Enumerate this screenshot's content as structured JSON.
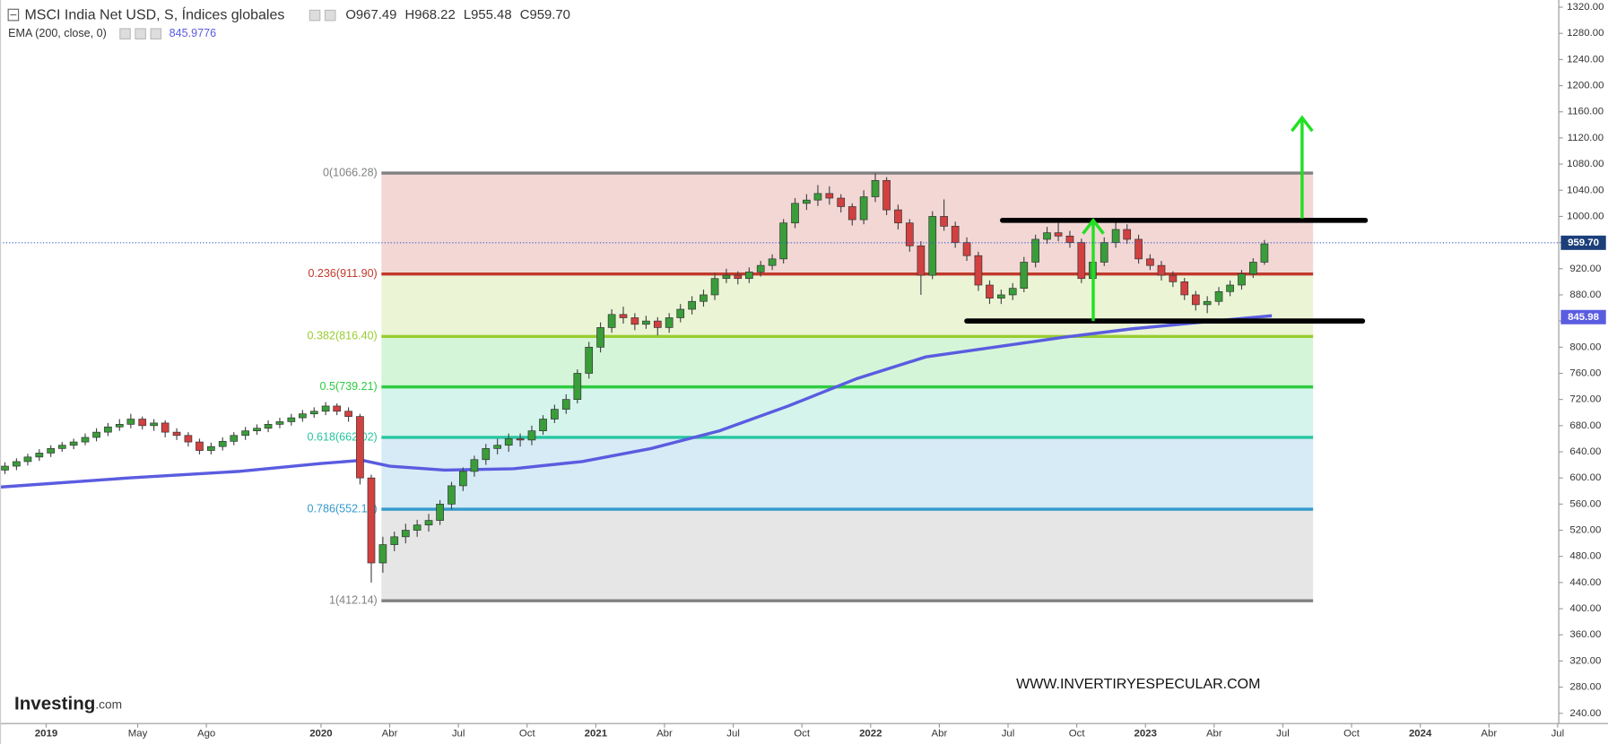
{
  "chart_data": {
    "type": "candlestick",
    "title": "MSCI India Net USD, S, Índices globales",
    "readout": [
      {
        "key": "O",
        "text": "967.49"
      },
      {
        "key": "H",
        "text": "968.22"
      },
      {
        "key": "L",
        "text": "955.48"
      },
      {
        "key": "C",
        "text": "959.70"
      }
    ],
    "up_color": "#3a9d3a",
    "down_color": "#d24040",
    "xlim": [
      2018.832,
      2024.504
    ],
    "ylim": [
      224.4,
      1331
    ],
    "xticks": [
      2019,
      {
        "value": 2019.333,
        "label": "May"
      },
      {
        "value": 2019.583,
        "label": "Ago"
      },
      2020,
      {
        "value": 2020.25,
        "label": "Abr"
      },
      {
        "value": 2020.5,
        "label": "Jul"
      },
      {
        "value": 2020.75,
        "label": "Oct"
      },
      2021,
      {
        "value": 2021.25,
        "label": "Abr"
      },
      {
        "value": 2021.5,
        "label": "Jul"
      },
      {
        "value": 2021.75,
        "label": "Oct"
      },
      2022,
      {
        "value": 2022.25,
        "label": "Abr"
      },
      {
        "value": 2022.5,
        "label": "Jul"
      },
      {
        "value": 2022.75,
        "label": "Oct"
      },
      2023,
      {
        "value": 2023.25,
        "label": "Abr"
      },
      {
        "value": 2023.5,
        "label": "Jul"
      },
      {
        "value": 2023.75,
        "label": "Oct"
      },
      2024,
      {
        "value": 2024.25,
        "label": "Abr"
      },
      {
        "value": 2024.5,
        "label": "Jul"
      }
    ],
    "yticks": [
      {
        "value": 240,
        "label": "240.00"
      },
      {
        "value": 280,
        "label": "280.00"
      },
      {
        "value": 320,
        "label": "320.00"
      },
      {
        "value": 360,
        "label": "360.00"
      },
      {
        "value": 400,
        "label": "400.00"
      },
      {
        "value": 440,
        "label": "440.00"
      },
      {
        "value": 480,
        "label": "480.00"
      },
      {
        "value": 520,
        "label": "520.00"
      },
      {
        "value": 560,
        "label": "560.00"
      },
      {
        "value": 600,
        "label": "600.00"
      },
      {
        "value": 640,
        "label": "640.00"
      },
      {
        "value": 680,
        "label": "680.00"
      },
      {
        "value": 720,
        "label": "720.00"
      },
      {
        "value": 760,
        "label": "760.00"
      },
      {
        "value": 800,
        "label": "800.00"
      },
      {
        "value": 840,
        "label": "840.00"
      },
      {
        "value": 880,
        "label": "880.00"
      },
      {
        "value": 920,
        "label": "920.00"
      },
      {
        "value": 960,
        "label": "960.00"
      },
      {
        "value": 1000,
        "label": "1000.00"
      },
      {
        "value": 1040,
        "label": "1040.00"
      },
      {
        "value": 1080,
        "label": "1080.00"
      },
      {
        "value": 1120,
        "label": "1120.00"
      },
      {
        "value": 1160,
        "label": "1160.00"
      },
      {
        "value": 1200,
        "label": "1200.00"
      },
      {
        "value": 1240,
        "label": "1240.00"
      },
      {
        "value": 1280,
        "label": "1280.00"
      },
      {
        "value": 1320,
        "label": "1320.00"
      }
    ],
    "x": [
      2018.85,
      2018.892,
      2018.933,
      2018.975,
      2019.017,
      2019.058,
      2019.1,
      2019.142,
      2019.183,
      2019.225,
      2019.267,
      2019.308,
      2019.35,
      2019.392,
      2019.433,
      2019.475,
      2019.517,
      2019.558,
      2019.6,
      2019.642,
      2019.683,
      2019.725,
      2019.767,
      2019.808,
      2019.85,
      2019.892,
      2019.933,
      2019.975,
      2020.017,
      2020.058,
      2020.1,
      2020.142,
      2020.183,
      2020.225,
      2020.267,
      2020.308,
      2020.35,
      2020.392,
      2020.433,
      2020.475,
      2020.517,
      2020.558,
      2020.6,
      2020.642,
      2020.683,
      2020.725,
      2020.767,
      2020.808,
      2020.85,
      2020.892,
      2020.933,
      2020.975,
      2021.017,
      2021.058,
      2021.1,
      2021.142,
      2021.183,
      2021.225,
      2021.267,
      2021.308,
      2021.35,
      2021.392,
      2021.433,
      2021.475,
      2021.517,
      2021.558,
      2021.6,
      2021.642,
      2021.683,
      2021.725,
      2021.767,
      2021.808,
      2021.85,
      2021.892,
      2021.933,
      2021.975,
      2022.017,
      2022.058,
      2022.1,
      2022.142,
      2022.183,
      2022.225,
      2022.267,
      2022.308,
      2022.35,
      2022.392,
      2022.433,
      2022.475,
      2022.517,
      2022.558,
      2022.6,
      2022.642,
      2022.683,
      2022.725,
      2022.767,
      2022.808,
      2022.85,
      2022.892,
      2022.933,
      2022.975,
      2023.017,
      2023.058,
      2023.1,
      2023.142,
      2023.183,
      2023.225,
      2023.267,
      2023.308,
      2023.35,
      2023.392,
      2023.433
    ],
    "ohlc": [
      [
        612,
        624,
        606,
        618
      ],
      [
        618,
        630,
        612,
        625
      ],
      [
        625,
        637,
        619,
        632
      ],
      [
        632,
        644,
        626,
        638
      ],
      [
        638,
        650,
        632,
        645
      ],
      [
        645,
        655,
        640,
        650
      ],
      [
        650,
        660,
        644,
        655
      ],
      [
        655,
        668,
        650,
        662
      ],
      [
        662,
        676,
        656,
        670
      ],
      [
        670,
        684,
        664,
        678
      ],
      [
        678,
        690,
        672,
        682
      ],
      [
        682,
        698,
        676,
        690
      ],
      [
        690,
        694,
        674,
        680
      ],
      [
        680,
        690,
        672,
        684
      ],
      [
        684,
        688,
        662,
        670
      ],
      [
        670,
        676,
        658,
        665
      ],
      [
        665,
        670,
        648,
        655
      ],
      [
        655,
        660,
        636,
        642
      ],
      [
        642,
        654,
        636,
        648
      ],
      [
        648,
        662,
        642,
        656
      ],
      [
        656,
        670,
        650,
        665
      ],
      [
        665,
        678,
        658,
        672
      ],
      [
        672,
        682,
        666,
        676
      ],
      [
        676,
        688,
        670,
        682
      ],
      [
        682,
        692,
        676,
        686
      ],
      [
        686,
        698,
        680,
        692
      ],
      [
        692,
        704,
        686,
        698
      ],
      [
        698,
        708,
        692,
        702
      ],
      [
        702,
        716,
        696,
        710
      ],
      [
        710,
        714,
        696,
        702
      ],
      [
        702,
        708,
        686,
        694
      ],
      [
        694,
        698,
        590,
        600
      ],
      [
        600,
        605,
        440,
        470
      ],
      [
        470,
        510,
        455,
        498
      ],
      [
        498,
        518,
        488,
        510
      ],
      [
        510,
        530,
        500,
        520
      ],
      [
        520,
        536,
        510,
        528
      ],
      [
        528,
        545,
        518,
        535
      ],
      [
        535,
        566,
        528,
        560
      ],
      [
        560,
        594,
        552,
        588
      ],
      [
        588,
        616,
        580,
        610
      ],
      [
        610,
        634,
        602,
        628
      ],
      [
        628,
        652,
        620,
        645
      ],
      [
        645,
        660,
        636,
        650
      ],
      [
        650,
        668,
        640,
        660
      ],
      [
        660,
        668,
        648,
        658
      ],
      [
        658,
        680,
        650,
        672
      ],
      [
        672,
        696,
        666,
        690
      ],
      [
        690,
        712,
        684,
        705
      ],
      [
        705,
        728,
        698,
        720
      ],
      [
        720,
        766,
        714,
        760
      ],
      [
        760,
        808,
        752,
        800
      ],
      [
        800,
        838,
        792,
        830
      ],
      [
        830,
        858,
        822,
        850
      ],
      [
        850,
        862,
        836,
        845
      ],
      [
        845,
        852,
        826,
        835
      ],
      [
        835,
        848,
        828,
        840
      ],
      [
        840,
        846,
        818,
        830
      ],
      [
        830,
        852,
        822,
        845
      ],
      [
        845,
        866,
        838,
        858
      ],
      [
        858,
        878,
        850,
        870
      ],
      [
        870,
        888,
        862,
        880
      ],
      [
        880,
        914,
        872,
        905
      ],
      [
        905,
        920,
        898,
        910
      ],
      [
        910,
        916,
        896,
        905
      ],
      [
        905,
        922,
        898,
        915
      ],
      [
        915,
        932,
        908,
        925
      ],
      [
        925,
        942,
        918,
        935
      ],
      [
        935,
        996,
        928,
        990
      ],
      [
        990,
        1028,
        982,
        1020
      ],
      [
        1020,
        1034,
        1010,
        1025
      ],
      [
        1025,
        1048,
        1016,
        1035
      ],
      [
        1035,
        1046,
        1018,
        1028
      ],
      [
        1028,
        1034,
        1006,
        1015
      ],
      [
        1015,
        1020,
        986,
        995
      ],
      [
        995,
        1040,
        988,
        1030
      ],
      [
        1030,
        1066,
        1022,
        1055
      ],
      [
        1055,
        1060,
        1002,
        1010
      ],
      [
        1010,
        1018,
        980,
        990
      ],
      [
        990,
        996,
        946,
        955
      ],
      [
        955,
        962,
        880,
        910
      ],
      [
        910,
        1008,
        904,
        1000
      ],
      [
        1000,
        1026,
        978,
        985
      ],
      [
        985,
        992,
        952,
        960
      ],
      [
        960,
        968,
        932,
        940
      ],
      [
        940,
        946,
        886,
        895
      ],
      [
        895,
        902,
        866,
        875
      ],
      [
        875,
        888,
        866,
        880
      ],
      [
        880,
        898,
        872,
        890
      ],
      [
        890,
        938,
        884,
        930
      ],
      [
        930,
        972,
        922,
        965
      ],
      [
        965,
        984,
        958,
        975
      ],
      [
        975,
        990,
        962,
        970
      ],
      [
        970,
        978,
        952,
        960
      ],
      [
        960,
        966,
        898,
        905
      ],
      [
        905,
        938,
        898,
        930
      ],
      [
        930,
        968,
        924,
        960
      ],
      [
        960,
        992,
        952,
        980
      ],
      [
        980,
        988,
        958,
        965
      ],
      [
        965,
        972,
        928,
        935
      ],
      [
        935,
        942,
        918,
        925
      ],
      [
        925,
        932,
        902,
        910
      ],
      [
        910,
        916,
        892,
        900
      ],
      [
        900,
        906,
        872,
        880
      ],
      [
        880,
        886,
        856,
        865
      ],
      [
        865,
        878,
        852,
        870
      ],
      [
        870,
        892,
        864,
        885
      ],
      [
        885,
        902,
        878,
        895
      ],
      [
        895,
        918,
        888,
        912
      ],
      [
        912,
        936,
        906,
        930
      ],
      [
        930,
        964,
        926,
        958
      ]
    ],
    "last_price": {
      "value": 959.7,
      "label": "959.70",
      "color": "#1c3f7a"
    },
    "ema": {
      "name": "EMA (200, close, 0)",
      "readout": "845.9776",
      "color": "#5a5ce0",
      "last_value": 845.98,
      "x": [
        2018.832,
        2019.3,
        2019.7,
        2020.0,
        2020.15,
        2020.25,
        2020.45,
        2020.7,
        2020.95,
        2021.2,
        2021.45,
        2021.7,
        2021.95,
        2022.2,
        2022.45,
        2022.7,
        2022.95,
        2023.2,
        2023.46
      ],
      "values": [
        586,
        600,
        610,
        622,
        627,
        618,
        612,
        614,
        625,
        645,
        672,
        710,
        752,
        785,
        800,
        815,
        828,
        838,
        848
      ]
    },
    "fibonacci": {
      "x": [
        2020.22,
        2023.61
      ],
      "levels": [
        {
          "value": 1066.28,
          "label": "0(1066.28)",
          "color": "#808080"
        },
        {
          "value": 911.9,
          "label": "0.236(911.90)",
          "color": "#c0392b"
        },
        {
          "value": 816.4,
          "label": "0.382(816.40)",
          "color": "#9acd32"
        },
        {
          "value": 739.21,
          "label": "0.5(739.21)",
          "color": "#2ecc40"
        },
        {
          "value": 662.02,
          "label": "0.618(662.02)",
          "color": "#26c6a0"
        },
        {
          "value": 552.13,
          "label": "0.786(552.13)",
          "color": "#3399cc"
        },
        {
          "value": 412.14,
          "label": "1(412.14)",
          "color": "#808080"
        }
      ]
    },
    "trend_lines": {
      "color": "#000000",
      "lines": [
        {
          "x": [
            2022.48,
            2023.8
          ],
          "y": [
            994,
            994
          ]
        },
        {
          "x": [
            2022.35,
            2023.79
          ],
          "y": [
            840,
            840
          ]
        }
      ]
    },
    "arrows": {
      "color": "#22e022",
      "items": [
        {
          "x": 2022.81,
          "y": [
            840,
            994
          ]
        },
        {
          "x": 2023.57,
          "y": [
            997,
            1151
          ]
        }
      ]
    },
    "watermark": "WWW.INVERTIRYESPECULAR.COM",
    "logo": {
      "name": "Investing",
      "suffix": ".com"
    }
  }
}
